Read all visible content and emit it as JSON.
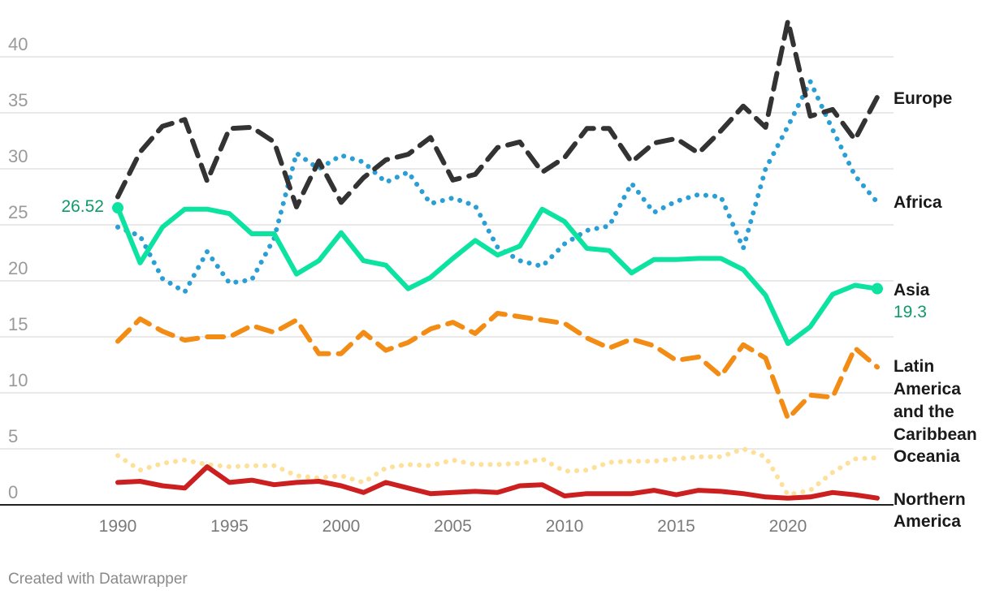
{
  "credit": "Created with Datawrapper",
  "chart_data": {
    "type": "line",
    "x": [
      1990,
      1991,
      1992,
      1993,
      1994,
      1995,
      1996,
      1997,
      1998,
      1999,
      2000,
      2001,
      2002,
      2003,
      2004,
      2005,
      2006,
      2007,
      2008,
      2009,
      2010,
      2011,
      2012,
      2013,
      2014,
      2015,
      2016,
      2017,
      2018,
      2019,
      2020,
      2021,
      2022,
      2023,
      2024
    ],
    "xticks": [
      1990,
      1995,
      2000,
      2005,
      2010,
      2015,
      2020
    ],
    "yticks": [
      0,
      5,
      10,
      15,
      20,
      25,
      30,
      35,
      40
    ],
    "xlim": [
      1990,
      2024
    ],
    "ylim": [
      0,
      42
    ],
    "grid": true,
    "legend": "direct labels at line ends",
    "series": [
      {
        "name": "Europe",
        "color": "#333333",
        "style": "dash",
        "values": [
          27.5,
          31.5,
          33.8,
          34.4,
          28.9,
          33.6,
          33.7,
          32.4,
          26.6,
          30.7,
          27.0,
          29.2,
          30.8,
          31.3,
          32.8,
          29.0,
          29.5,
          31.9,
          32.4,
          29.7,
          31.0,
          33.6,
          33.6,
          30.6,
          32.3,
          32.7,
          31.4,
          33.4,
          35.6,
          33.7,
          43.2,
          34.7,
          35.3,
          32.6,
          36.4
        ]
      },
      {
        "name": "Africa",
        "color": "#2a9fd6",
        "style": "dot",
        "values": [
          24.8,
          24.0,
          20.2,
          19.0,
          22.6,
          19.8,
          20.1,
          23.8,
          31.4,
          30.0,
          31.2,
          30.6,
          28.8,
          29.7,
          26.9,
          27.4,
          26.7,
          23.0,
          21.8,
          21.3,
          23.3,
          24.5,
          24.9,
          28.7,
          26.1,
          27.1,
          27.7,
          27.5,
          22.9,
          30.0,
          33.8,
          37.8,
          33.5,
          29.4,
          27.0
        ]
      },
      {
        "name": "Asia",
        "color": "#0de3a0",
        "style": "solid",
        "values": [
          26.52,
          21.6,
          24.8,
          26.4,
          26.4,
          26.0,
          24.2,
          24.2,
          20.6,
          21.8,
          24.3,
          21.8,
          21.4,
          19.3,
          20.3,
          22.0,
          23.6,
          22.3,
          23.1,
          26.4,
          25.3,
          22.9,
          22.7,
          20.7,
          21.9,
          21.9,
          22.0,
          22.0,
          21.0,
          18.7,
          14.4,
          15.9,
          18.8,
          19.6,
          19.3
        ]
      },
      {
        "name": "Latin America and the Caribbean",
        "color": "#f28c14",
        "style": "dash",
        "values": [
          14.6,
          16.6,
          15.5,
          14.7,
          15.0,
          15.0,
          16.0,
          15.4,
          16.5,
          13.5,
          13.5,
          15.4,
          13.8,
          14.5,
          15.7,
          16.3,
          15.3,
          17.1,
          16.8,
          16.5,
          16.2,
          14.9,
          14.0,
          14.8,
          14.2,
          12.9,
          13.2,
          11.5,
          14.3,
          13.1,
          7.7,
          9.8,
          9.6,
          14.0,
          12.3
        ]
      },
      {
        "name": "Oceania",
        "color": "#fde09a",
        "style": "dot",
        "values": [
          4.4,
          3.1,
          3.7,
          4.0,
          3.6,
          3.4,
          3.5,
          3.5,
          2.6,
          2.4,
          2.6,
          2.0,
          3.3,
          3.6,
          3.5,
          4.0,
          3.6,
          3.6,
          3.7,
          4.1,
          3.0,
          3.1,
          3.8,
          3.9,
          3.9,
          4.1,
          4.3,
          4.3,
          5.0,
          4.3,
          0.9,
          1.3,
          2.9,
          4.1,
          4.2
        ]
      },
      {
        "name": "Northern America",
        "color": "#cc1f1f",
        "style": "solid",
        "values": [
          2.0,
          2.1,
          1.7,
          1.5,
          3.4,
          2.0,
          2.2,
          1.8,
          2.0,
          2.1,
          1.7,
          1.1,
          2.0,
          1.5,
          1.0,
          1.1,
          1.2,
          1.1,
          1.7,
          1.8,
          0.8,
          1.0,
          1.0,
          1.0,
          1.3,
          0.9,
          1.3,
          1.2,
          1.0,
          0.7,
          0.6,
          0.7,
          1.1,
          0.9,
          0.6
        ]
      }
    ],
    "labels": {
      "europe": "Europe",
      "africa": "Africa",
      "asia": "Asia",
      "asia_end_value": "19.3",
      "asia_start_value": "26.52",
      "latam_1": "Latin",
      "latam_2": "America",
      "latam_3": "and the",
      "latam_4": "Caribbean",
      "oceania": "Oceania",
      "namerica_1": "Northern",
      "namerica_2": "America"
    }
  }
}
